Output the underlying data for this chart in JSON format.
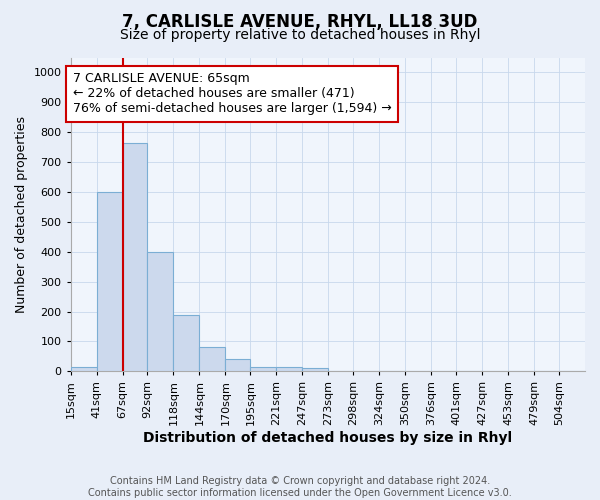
{
  "title": "7, CARLISLE AVENUE, RHYL, LL18 3UD",
  "subtitle": "Size of property relative to detached houses in Rhyl",
  "xlabel": "Distribution of detached houses by size in Rhyl",
  "ylabel": "Number of detached properties",
  "bar_edges": [
    15,
    41,
    67,
    92,
    118,
    144,
    170,
    195,
    221,
    247,
    273,
    298,
    324,
    350,
    376,
    401,
    427,
    453,
    479,
    504,
    530
  ],
  "bar_heights": [
    15,
    600,
    765,
    400,
    190,
    80,
    40,
    15,
    15,
    10,
    0,
    0,
    0,
    0,
    0,
    0,
    0,
    0,
    0,
    0
  ],
  "bar_color": "#ccd9ed",
  "bar_edge_color": "#7baed4",
  "property_line_x": 67,
  "property_line_color": "#cc0000",
  "annotation_text": "7 CARLISLE AVENUE: 65sqm\n← 22% of detached houses are smaller (471)\n76% of semi-detached houses are larger (1,594) →",
  "annotation_box_color": "#ffffff",
  "annotation_box_edge_color": "#cc0000",
  "ylim": [
    0,
    1050
  ],
  "yticks": [
    0,
    100,
    200,
    300,
    400,
    500,
    600,
    700,
    800,
    900,
    1000
  ],
  "footnote": "Contains HM Land Registry data © Crown copyright and database right 2024.\nContains public sector information licensed under the Open Government Licence v3.0.",
  "bg_color": "#e8eef8",
  "plot_bg_color": "#f0f5fc",
  "title_fontsize": 12,
  "subtitle_fontsize": 10,
  "ylabel_fontsize": 9,
  "tick_fontsize": 8,
  "annotation_fontsize": 9,
  "footnote_fontsize": 7,
  "xlabel_fontsize": 10
}
